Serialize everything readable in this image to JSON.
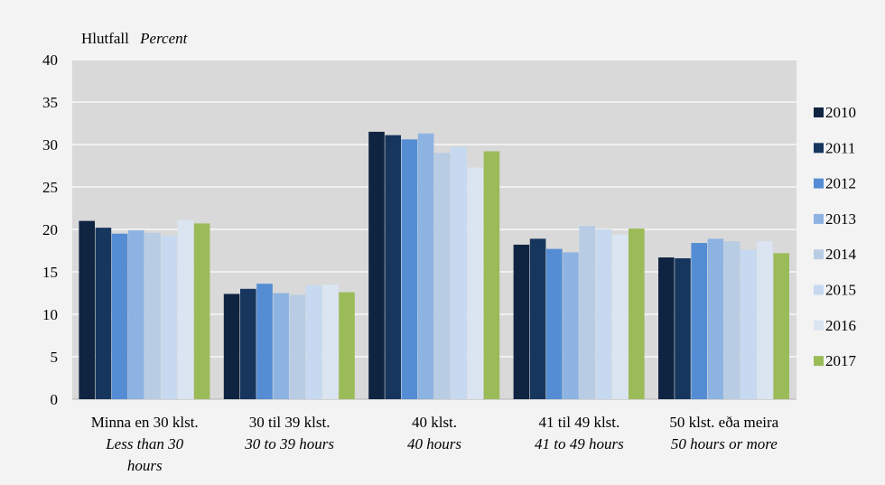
{
  "chart_data": {
    "type": "bar",
    "ylabel": "Hlutfall",
    "ylabel_en": "Percent",
    "ylim": [
      0,
      40
    ],
    "yticks": [
      0,
      5,
      10,
      15,
      20,
      25,
      30,
      35,
      40
    ],
    "grid": true,
    "legend_position": "right",
    "categories": [
      {
        "is": "Minna en 30 klst.",
        "en": [
          "Less than 30",
          "hours"
        ]
      },
      {
        "is": "30 til 39 klst.",
        "en": [
          "30 to 39 hours"
        ]
      },
      {
        "is": "40 klst.",
        "en": [
          "40 hours"
        ]
      },
      {
        "is": "41 til 49 klst.",
        "en": [
          "41 to 49 hours"
        ]
      },
      {
        "is": "50 klst. eða meira",
        "en": [
          "50 hours or more"
        ]
      }
    ],
    "series": [
      {
        "name": "2010",
        "color": "#0f2440",
        "values": [
          21.0,
          12.4,
          31.5,
          18.2,
          16.7
        ]
      },
      {
        "name": "2011",
        "color": "#17365d",
        "values": [
          20.2,
          13.0,
          31.1,
          18.9,
          16.6
        ]
      },
      {
        "name": "2012",
        "color": "#548dd4",
        "values": [
          19.5,
          13.6,
          30.6,
          17.7,
          18.4
        ]
      },
      {
        "name": "2013",
        "color": "#8db3e2",
        "values": [
          19.9,
          12.5,
          31.3,
          17.3,
          18.9
        ]
      },
      {
        "name": "2014",
        "color": "#b8cce4",
        "values": [
          19.6,
          12.3,
          29.0,
          20.4,
          18.6
        ]
      },
      {
        "name": "2015",
        "color": "#c6d9f1",
        "values": [
          19.2,
          13.4,
          29.7,
          20.0,
          17.6
        ]
      },
      {
        "name": "2016",
        "color": "#dbe5f1",
        "values": [
          21.1,
          13.5,
          27.3,
          19.4,
          18.6
        ]
      },
      {
        "name": "2017",
        "color": "#9bbb59",
        "values": [
          20.7,
          12.6,
          29.2,
          20.1,
          17.2
        ]
      }
    ]
  },
  "colors": {
    "plot_background": "#d9d9d9",
    "page_background": "#f3f3f3",
    "gridline": "#ffffff"
  }
}
